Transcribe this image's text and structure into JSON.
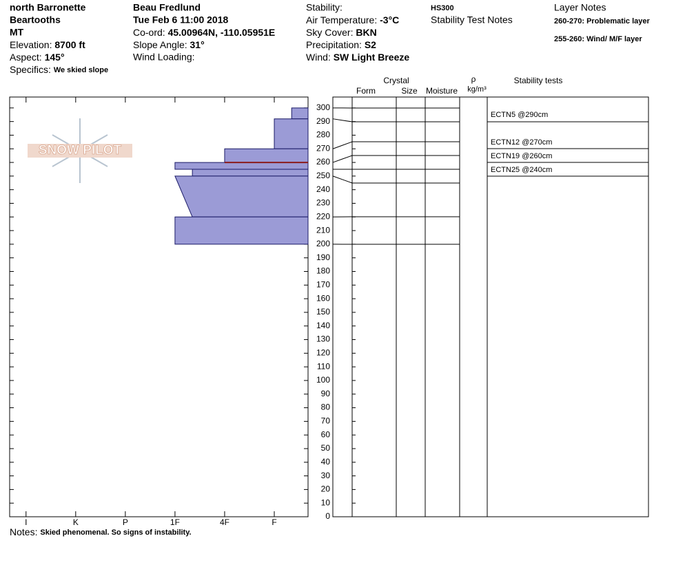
{
  "header": {
    "location": "north Barronette",
    "range": "Beartooths",
    "state": "MT",
    "elevation_label": "Elevation:",
    "elevation": "8700 ft",
    "aspect_label": "Aspect:",
    "aspect": "145°",
    "specifics_label": "Specifics:",
    "specifics": "We skied slope",
    "observer": "Beau  Fredlund",
    "date": "Tue Feb 6 11:00 2018",
    "coord_label": "Co-ord:",
    "coord": "45.00964N, -110.05951E",
    "slope_label": "Slope Angle:",
    "slope": "31°",
    "wind_loading_label": "Wind Loading:",
    "stability_label": "Stability:",
    "air_temp_label": "Air Temperature:",
    "air_temp": "-3°C",
    "sky_label": "Sky Cover:",
    "sky": "BKN",
    "precip_label": "Precipitation:",
    "precip": "S2",
    "wind_label": "Wind:",
    "wind": "SW Light Breeze",
    "hs": "HS300",
    "stability_notes_title": "Stability Test Notes",
    "layer_notes_title": "Layer Notes",
    "layer_notes": [
      "260-270: Problematic layer",
      "255-260: Wind/ M/F layer"
    ]
  },
  "logo": "SNOW PILOT",
  "chart_data": {
    "type": "snowpit",
    "xlim": [
      6.33,
      0.32
    ],
    "xticks": [
      {
        "value": 6,
        "label": "I"
      },
      {
        "value": 5,
        "label": "K"
      },
      {
        "value": 4,
        "label": "P"
      },
      {
        "value": 3,
        "label": "1F"
      },
      {
        "value": 2,
        "label": "4F"
      },
      {
        "value": 1,
        "label": "F"
      }
    ],
    "ylim": [
      0,
      308
    ],
    "yticks": [
      0,
      10,
      20,
      30,
      40,
      50,
      60,
      70,
      80,
      90,
      100,
      110,
      120,
      130,
      140,
      150,
      160,
      170,
      180,
      190,
      200,
      210,
      220,
      230,
      240,
      250,
      260,
      270,
      280,
      290,
      300
    ],
    "color": "#9b9bd6",
    "layers": [
      {
        "top": 300,
        "bottom": 292,
        "hardness": 0.65,
        "hardness_bottom": 0.65
      },
      {
        "top": 292,
        "bottom": 270,
        "hardness": 1,
        "hardness_bottom": 1
      },
      {
        "top": 270,
        "bottom": 260,
        "hardness": 2,
        "hardness_bottom": 2
      },
      {
        "top": 260,
        "bottom": 255,
        "hardness": 3,
        "hardness_bottom": 3
      },
      {
        "top": 255,
        "bottom": 250,
        "hardness": 2.65,
        "hardness_bottom": 2.65
      },
      {
        "top": 250,
        "bottom": 220,
        "hardness": 3,
        "hardness_bottom": 2.65
      },
      {
        "top": 220,
        "bottom": 200,
        "hardness": 3,
        "hardness_bottom": 3
      }
    ],
    "marker": {
      "depth": 260,
      "hardness": 2,
      "color": "#8b1a1a"
    },
    "columns": {
      "crystal": "Crystal",
      "form": "Form",
      "size": "Size",
      "moisture": "Moisture",
      "rho": "ρ",
      "density_unit": "kg/m³",
      "stability": "Stability tests"
    },
    "stability_tests": [
      "ECTN5 @290cm",
      "ECTN12 @270cm",
      "ECTN19 @260cm",
      "ECTN25 @240cm"
    ]
  },
  "notes": {
    "label": "Notes:",
    "text": "Skied phenomenal.  So signs of instability."
  }
}
